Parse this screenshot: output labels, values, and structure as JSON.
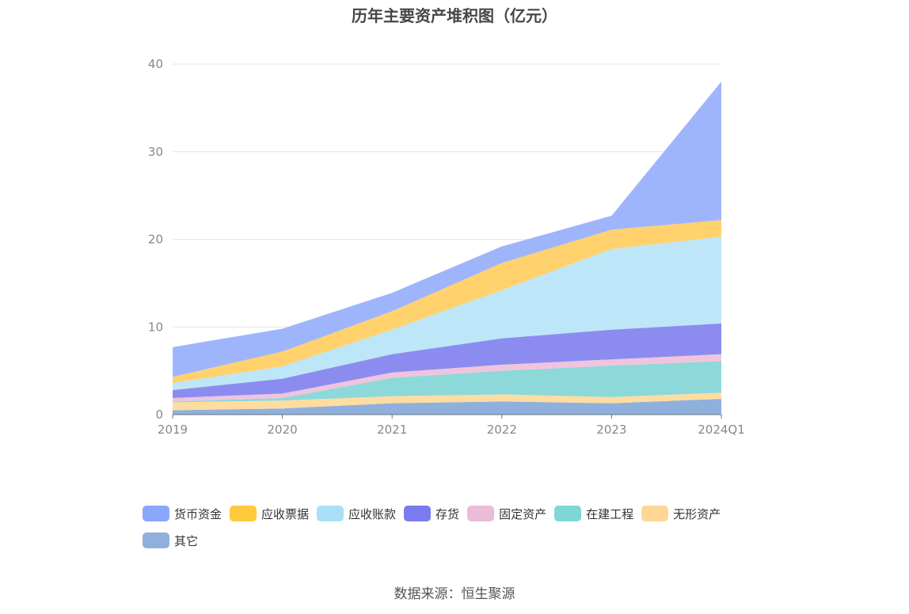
{
  "chart_data": {
    "type": "area",
    "title": "历年主要资产堆积图（亿元）",
    "categories": [
      "2019",
      "2020",
      "2021",
      "2022",
      "2023",
      "2024Q1"
    ],
    "ylim": [
      0,
      40
    ],
    "yticks": [
      "0",
      "10",
      "20",
      "30",
      "40"
    ],
    "grid": true,
    "legend_position": "bottom",
    "stacked": true,
    "series": [
      {
        "name": "其它",
        "color": "#8fb0dd",
        "values": [
          0.5,
          0.7,
          1.3,
          1.5,
          1.3,
          1.8
        ]
      },
      {
        "name": "无形资产",
        "color": "#ffdca0",
        "values": [
          0.9,
          0.9,
          0.8,
          0.8,
          0.7,
          0.7
        ]
      },
      {
        "name": "在建工程",
        "color": "#8dd9d9",
        "values": [
          0.1,
          0.3,
          2.1,
          2.7,
          3.6,
          3.6
        ]
      },
      {
        "name": "固定资产",
        "color": "#f0c4dc",
        "values": [
          0.4,
          0.5,
          0.6,
          0.7,
          0.7,
          0.8
        ]
      },
      {
        "name": "存货",
        "color": "#8c8cf0",
        "values": [
          0.9,
          1.7,
          2.1,
          3.0,
          3.4,
          3.5
        ]
      },
      {
        "name": "应收账款",
        "color": "#bde6f8",
        "values": [
          0.8,
          1.4,
          2.8,
          5.5,
          9.2,
          9.9
        ]
      },
      {
        "name": "应收票据",
        "color": "#ffd26e",
        "values": [
          0.7,
          1.7,
          2.1,
          3.1,
          2.2,
          1.9
        ]
      },
      {
        "name": "货币资金",
        "color": "#9fb5fb",
        "values": [
          3.4,
          2.6,
          2.1,
          1.9,
          1.6,
          15.8
        ]
      }
    ]
  },
  "legend": [
    {
      "label": "货币资金",
      "color": "#8aa7fb"
    },
    {
      "label": "应收票据",
      "color": "#ffc93c"
    },
    {
      "label": "应收账款",
      "color": "#a9e0f8"
    },
    {
      "label": "存货",
      "color": "#7b7bf0"
    },
    {
      "label": "固定资产",
      "color": "#ecbbda"
    },
    {
      "label": "在建工程",
      "color": "#7fd6d6"
    },
    {
      "label": "无形资产",
      "color": "#ffd696"
    },
    {
      "label": "其它",
      "color": "#8fb0dd"
    }
  ],
  "source_text": "数据来源：恒生聚源"
}
